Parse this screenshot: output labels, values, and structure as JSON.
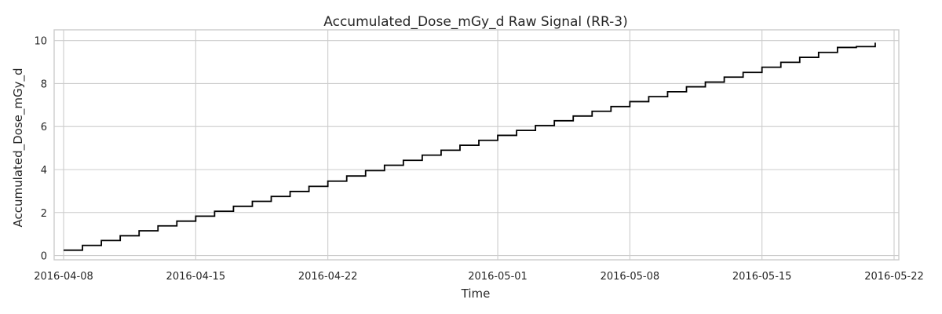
{
  "chart_data": {
    "type": "line",
    "title": "Accumulated_Dose_mGy_d Raw Signal (RR-3)",
    "xlabel": "Time",
    "ylabel": "Accumulated_Dose_mGy_d",
    "x_type": "date",
    "xlim": [
      "2016-04-07T12:00",
      "2016-05-22T06:00"
    ],
    "ylim": [
      -0.2,
      10.5
    ],
    "x_ticks": [
      "2016-04-08",
      "2016-04-15",
      "2016-04-22",
      "2016-05-01",
      "2016-05-08",
      "2016-05-15",
      "2016-05-22"
    ],
    "y_ticks": [
      0,
      2,
      4,
      6,
      8,
      10
    ],
    "grid": true,
    "legend": "none",
    "line_style": "step (post)",
    "colors": {
      "series": "#000000",
      "grid": "#cccccc",
      "background": "#ffffff"
    },
    "series": [
      {
        "x": [
          "2016-04-08",
          "2016-04-09",
          "2016-04-10",
          "2016-04-11",
          "2016-04-12",
          "2016-04-13",
          "2016-04-14",
          "2016-04-15",
          "2016-04-16",
          "2016-04-17",
          "2016-04-18",
          "2016-04-19",
          "2016-04-20",
          "2016-04-21",
          "2016-04-22",
          "2016-04-23",
          "2016-04-24",
          "2016-04-25",
          "2016-04-26",
          "2016-04-27",
          "2016-04-28",
          "2016-04-29",
          "2016-04-30",
          "2016-05-01",
          "2016-05-02",
          "2016-05-03",
          "2016-05-04",
          "2016-05-05",
          "2016-05-06",
          "2016-05-07",
          "2016-05-08",
          "2016-05-09",
          "2016-05-10",
          "2016-05-11",
          "2016-05-12",
          "2016-05-13",
          "2016-05-14",
          "2016-05-15",
          "2016-05-16",
          "2016-05-17",
          "2016-05-18",
          "2016-05-19",
          "2016-05-20",
          "2016-05-20T23:59"
        ],
        "y": [
          0.25,
          0.47,
          0.7,
          0.92,
          1.15,
          1.38,
          1.6,
          1.83,
          2.06,
          2.29,
          2.52,
          2.75,
          2.98,
          3.22,
          3.46,
          3.7,
          3.95,
          4.2,
          4.43,
          4.67,
          4.9,
          5.13,
          5.36,
          5.59,
          5.82,
          6.05,
          6.27,
          6.49,
          6.71,
          6.93,
          7.16,
          7.39,
          7.62,
          7.85,
          8.07,
          8.3,
          8.52,
          8.76,
          8.99,
          9.22,
          9.45,
          9.68,
          9.72,
          9.9
        ]
      }
    ]
  }
}
